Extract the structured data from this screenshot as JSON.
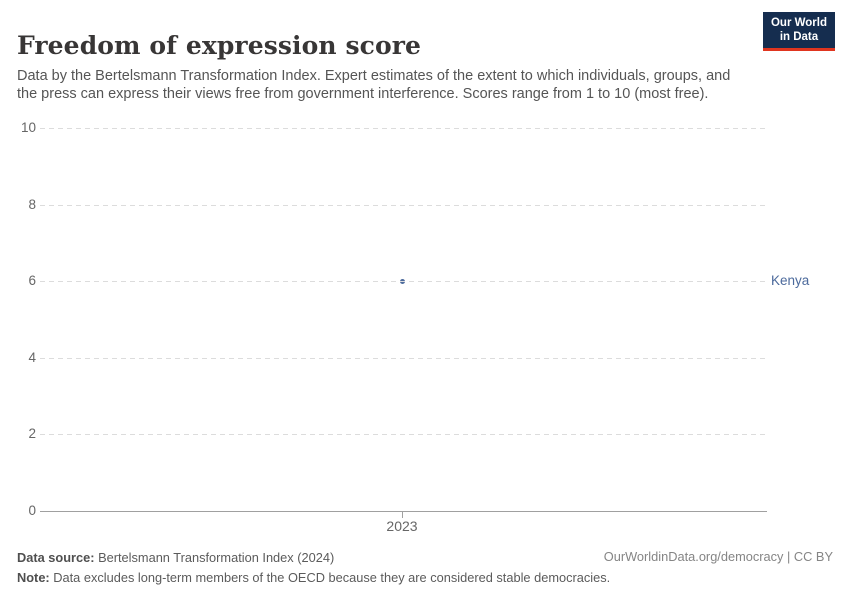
{
  "header": {
    "title": "Freedom of expression score",
    "subtitle": "Data by the Bertelsmann Transformation Index. Expert estimates of the extent to which individuals, groups, and the press can express their views free from government interference. Scores range from 1 to 10 (most free).",
    "logo": {
      "line1": "Our World",
      "line2": "in Data"
    }
  },
  "chart_data": {
    "type": "scatter",
    "title": "Freedom of expression score",
    "categories": [
      "2023"
    ],
    "x": [
      2023
    ],
    "series": [
      {
        "name": "Kenya",
        "values": [
          6
        ]
      }
    ],
    "xlabel": "",
    "ylabel": "",
    "ylim": [
      0,
      10
    ],
    "yticks": [
      0,
      2,
      4,
      6,
      8,
      10
    ],
    "grid": "horizontal-dashed",
    "legend_position": "right-of-plot-entity-label"
  },
  "footer": {
    "data_source_label": "Data source:",
    "data_source_text": " Bertelsmann Transformation Index (2024)",
    "note_label": "Note:",
    "note_text": " Data excludes long-term members of the OECD because they are considered stable democracies.",
    "attribution": "OurWorldinData.org/democracy | CC BY"
  },
  "colors": {
    "accent": "#4c6a9c",
    "grid": "#dcdcdc",
    "axis": "#a0a0a0",
    "tick_text": "#666666",
    "footer_text": "#5b5b5b",
    "logo_bg": "#152d4f",
    "logo_stripe": "#e0351f"
  }
}
